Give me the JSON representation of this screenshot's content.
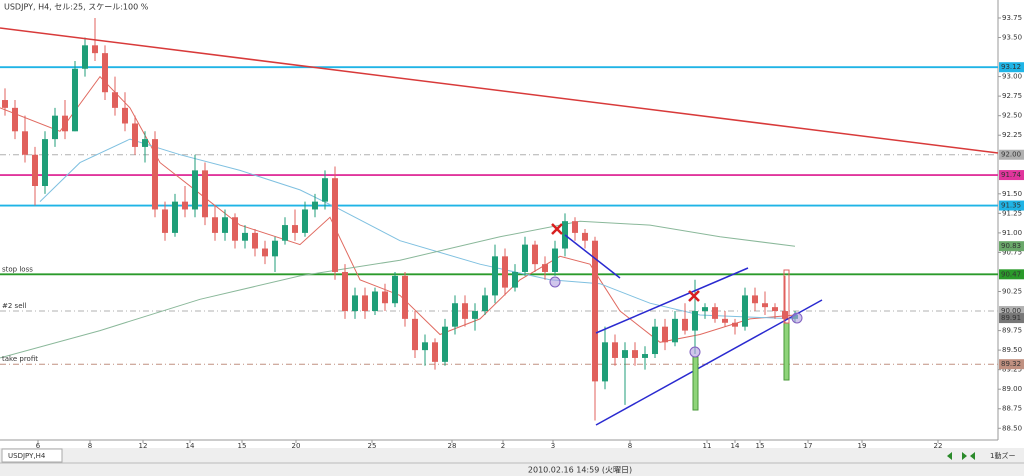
{
  "header_text": "USDJPY, H4, セル:25, スケール:100 %",
  "tab_label": "USDJPY,H4",
  "status_text": "2010.02.16 14:59 (火曜日)",
  "status_right": "1動ズー",
  "chart_data": {
    "type": "candlestick",
    "up_color": "#1f9e78",
    "down_color": "#e0605c",
    "xlim": [
      -0.5,
      99.3
    ],
    "ylim": [
      88.35,
      93.98
    ],
    "xticks": [
      {
        "value": 3.3,
        "label": "6"
      },
      {
        "value": 8.5,
        "label": "8"
      },
      {
        "value": 13.8,
        "label": "12"
      },
      {
        "value": 18.5,
        "label": "14"
      },
      {
        "value": 23.7,
        "label": "15"
      },
      {
        "value": 29.1,
        "label": "20"
      },
      {
        "value": 36.7,
        "label": "25"
      },
      {
        "value": 44.7,
        "label": "28"
      },
      {
        "value": 49.8,
        "label": "2"
      },
      {
        "value": 54.8,
        "label": "3"
      },
      {
        "value": 62.5,
        "label": "8"
      },
      {
        "value": 70.2,
        "label": "11"
      },
      {
        "value": 73,
        "label": "14"
      },
      {
        "value": 75.5,
        "label": "15"
      },
      {
        "value": 80.3,
        "label": "17"
      },
      {
        "value": 85.7,
        "label": "19"
      },
      {
        "value": 93.3,
        "label": "22"
      }
    ],
    "yticks": [
      {
        "value": 93.75,
        "label": "93.75"
      },
      {
        "value": 93.5,
        "label": "93.50"
      },
      {
        "value": 93,
        "label": "93.00"
      },
      {
        "value": 92.75,
        "label": "92.75"
      },
      {
        "value": 92.5,
        "label": "92.50"
      },
      {
        "value": 92.25,
        "label": "92.25"
      },
      {
        "value": 91.5,
        "label": "91.50"
      },
      {
        "value": 91.25,
        "label": "91.25"
      },
      {
        "value": 91,
        "label": "91.00"
      },
      {
        "value": 90.75,
        "label": "90.75"
      },
      {
        "value": 90.25,
        "label": "90.25"
      },
      {
        "value": 89.75,
        "label": "89.75"
      },
      {
        "value": 89.5,
        "label": "89.50"
      },
      {
        "value": 89.25,
        "label": "89.25"
      },
      {
        "value": 89,
        "label": "89.00"
      },
      {
        "value": 88.75,
        "label": "88.75"
      },
      {
        "value": 88.5,
        "label": "88.50"
      }
    ],
    "levels": [
      {
        "value": 93.12,
        "label": "93.12",
        "color": "#1fb4e6",
        "line": "solid"
      },
      {
        "value": 92.0,
        "label": "92.00",
        "color": "#b0b0b0",
        "line": "dash"
      },
      {
        "value": 91.74,
        "label": "91.74",
        "color": "#e0359c",
        "line": "solid"
      },
      {
        "value": 91.35,
        "label": "91.35",
        "color": "#1fb4e6",
        "line": "solid"
      },
      {
        "value": 90.83,
        "label": "90.83",
        "color": "#6aa86a",
        "line": "none"
      },
      {
        "value": 90.47,
        "label": "90.47",
        "color": "#2a9a2a",
        "line": "solid",
        "name": "stop loss"
      },
      {
        "value": 90.0,
        "label": "90.00",
        "color": "#b0b0b0",
        "line": "dash",
        "name": "#2 sell"
      },
      {
        "value": 89.91,
        "label": "89.91",
        "color": "#777777",
        "line": "none"
      },
      {
        "value": 89.32,
        "label": "89.32",
        "color": "#c09080",
        "line": "dash",
        "name": "take profit"
      }
    ],
    "overlays": [
      {
        "color": "#e06a60",
        "x": [
          -0.5,
          5.5,
          9.5,
          12.5,
          15.5,
          19.5,
          23.5,
          29.5,
          32.5,
          35.5,
          39.5,
          43.5,
          47.5,
          51.5,
          55.5,
          58.5,
          61.5,
          65.5,
          69.5,
          74.5,
          79
        ],
        "values": [
          92.6,
          92.3,
          93.0,
          92.6,
          91.9,
          91.5,
          91.1,
          90.85,
          91.2,
          90.4,
          90.2,
          89.7,
          89.9,
          90.4,
          90.7,
          90.6,
          90.0,
          89.6,
          89.7,
          89.9,
          89.95
        ]
      },
      {
        "color": "#7fc0e0",
        "x": [
          3.5,
          7.5,
          12.5,
          17.5,
          23.5,
          29.5,
          33.5,
          39.5,
          47.5,
          54.5,
          59.5,
          64.5,
          69.5,
          79
        ],
        "values": [
          91.4,
          91.9,
          92.2,
          92.0,
          91.8,
          91.55,
          91.3,
          90.9,
          90.6,
          90.4,
          90.35,
          90.1,
          89.95,
          89.9
        ]
      },
      {
        "color": "#8ab89a",
        "x": [
          -0.5,
          9.5,
          19.5,
          29.5,
          39.5,
          49.5,
          57.5,
          64.5,
          71.5,
          79
        ],
        "values": [
          89.4,
          89.75,
          90.15,
          90.45,
          90.65,
          90.95,
          91.15,
          91.1,
          90.95,
          90.83
        ]
      }
    ],
    "ohlc": [
      [
        92.7,
        92.85,
        92.5,
        92.6
      ],
      [
        92.6,
        92.7,
        92.2,
        92.3
      ],
      [
        92.3,
        92.5,
        91.9,
        92.0
      ],
      [
        92.0,
        92.1,
        91.35,
        91.6
      ],
      [
        91.6,
        92.3,
        91.5,
        92.2
      ],
      [
        92.2,
        92.6,
        92.1,
        92.5
      ],
      [
        92.5,
        92.7,
        92.2,
        92.3
      ],
      [
        92.3,
        93.2,
        92.3,
        93.1
      ],
      [
        93.1,
        93.5,
        93.0,
        93.4
      ],
      [
        93.4,
        93.75,
        93.2,
        93.3
      ],
      [
        93.3,
        93.4,
        92.7,
        92.8
      ],
      [
        92.8,
        93.0,
        92.5,
        92.6
      ],
      [
        92.6,
        92.8,
        92.3,
        92.4
      ],
      [
        92.4,
        92.5,
        92.0,
        92.1
      ],
      [
        92.1,
        92.3,
        91.9,
        92.2
      ],
      [
        92.2,
        92.3,
        91.2,
        91.3
      ],
      [
        91.3,
        91.4,
        90.9,
        91.0
      ],
      [
        91.0,
        91.5,
        90.95,
        91.4
      ],
      [
        91.4,
        91.6,
        91.2,
        91.3
      ],
      [
        91.3,
        92.0,
        91.2,
        91.8
      ],
      [
        91.8,
        91.9,
        91.1,
        91.2
      ],
      [
        91.2,
        91.35,
        90.9,
        91.0
      ],
      [
        91.0,
        91.3,
        90.9,
        91.2
      ],
      [
        91.2,
        91.25,
        90.8,
        90.9
      ],
      [
        90.9,
        91.1,
        90.8,
        91.0
      ],
      [
        91.0,
        91.05,
        90.7,
        90.8
      ],
      [
        90.8,
        90.9,
        90.6,
        90.7
      ],
      [
        90.7,
        90.95,
        90.5,
        90.9
      ],
      [
        90.9,
        91.2,
        90.85,
        91.1
      ],
      [
        91.1,
        91.3,
        90.9,
        91.0
      ],
      [
        91.0,
        91.4,
        90.95,
        91.3
      ],
      [
        91.3,
        91.5,
        91.2,
        91.4
      ],
      [
        91.4,
        91.8,
        91.3,
        91.7
      ],
      [
        91.7,
        91.85,
        90.4,
        90.5
      ],
      [
        90.5,
        90.6,
        89.9,
        90.0
      ],
      [
        90.0,
        90.3,
        89.9,
        90.2
      ],
      [
        90.2,
        90.3,
        89.9,
        90.0
      ],
      [
        90.0,
        90.3,
        89.95,
        90.25
      ],
      [
        90.25,
        90.35,
        90.0,
        90.1
      ],
      [
        90.1,
        90.5,
        90.05,
        90.45
      ],
      [
        90.45,
        90.5,
        89.8,
        89.9
      ],
      [
        89.9,
        90.0,
        89.4,
        89.5
      ],
      [
        89.5,
        89.7,
        89.3,
        89.6
      ],
      [
        89.6,
        89.65,
        89.25,
        89.35
      ],
      [
        89.35,
        89.9,
        89.3,
        89.8
      ],
      [
        89.8,
        90.2,
        89.7,
        90.1
      ],
      [
        90.1,
        90.2,
        89.8,
        89.9
      ],
      [
        89.9,
        90.1,
        89.75,
        90.0
      ],
      [
        90.0,
        90.3,
        89.95,
        90.2
      ],
      [
        90.2,
        90.85,
        90.1,
        90.7
      ],
      [
        90.7,
        90.8,
        90.2,
        90.3
      ],
      [
        90.3,
        90.6,
        90.25,
        90.5
      ],
      [
        90.5,
        90.95,
        90.45,
        90.85
      ],
      [
        90.85,
        90.9,
        90.5,
        90.6
      ],
      [
        90.6,
        90.7,
        90.4,
        90.5
      ],
      [
        90.5,
        90.9,
        90.45,
        90.8
      ],
      [
        90.8,
        91.25,
        90.7,
        91.15
      ],
      [
        91.15,
        91.2,
        90.9,
        91.0
      ],
      [
        91.0,
        91.05,
        90.8,
        90.9
      ],
      [
        90.9,
        90.95,
        88.6,
        89.1
      ],
      [
        89.1,
        89.8,
        89.0,
        89.6
      ],
      [
        89.6,
        89.7,
        89.3,
        89.4
      ],
      [
        89.4,
        89.6,
        88.8,
        89.5
      ],
      [
        89.5,
        89.6,
        89.3,
        89.4
      ],
      [
        89.4,
        89.55,
        89.25,
        89.45
      ],
      [
        89.45,
        89.9,
        89.4,
        89.8
      ],
      [
        89.8,
        89.9,
        89.5,
        89.6
      ],
      [
        89.6,
        90.0,
        89.55,
        89.9
      ],
      [
        89.9,
        90.1,
        89.7,
        89.75
      ],
      [
        89.75,
        90.4,
        89.45,
        90.0
      ],
      [
        90.0,
        90.1,
        89.9,
        90.05
      ],
      [
        90.05,
        90.1,
        89.85,
        89.9
      ],
      [
        89.9,
        90.0,
        89.8,
        89.85
      ],
      [
        89.85,
        89.9,
        89.7,
        89.8
      ],
      [
        89.8,
        90.3,
        89.75,
        90.2
      ],
      [
        90.2,
        90.3,
        90.0,
        90.1
      ],
      [
        90.1,
        90.25,
        89.95,
        90.05
      ],
      [
        90.05,
        90.1,
        89.9,
        90.0
      ],
      [
        90.0,
        90.45,
        89.7,
        89.9
      ],
      [
        89.9,
        90.0,
        89.85,
        89.95
      ]
    ]
  }
}
